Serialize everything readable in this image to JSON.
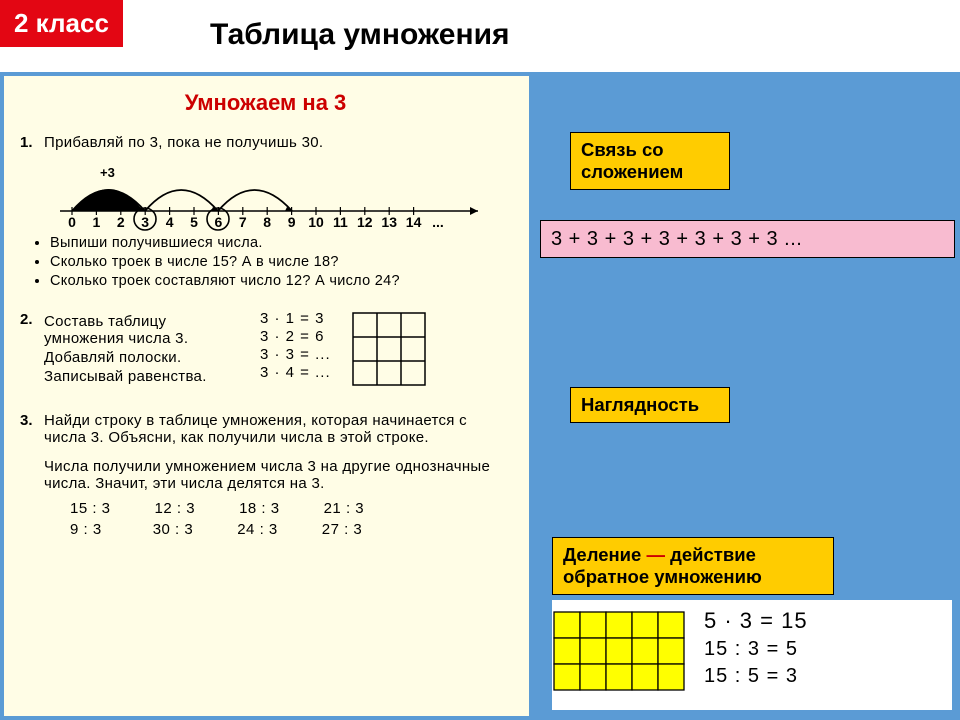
{
  "header": {
    "grade_badge": "2 класс",
    "title": "Таблица умножения"
  },
  "colors": {
    "badge_bg": "#e30613",
    "blue_bg": "#5b9bd5",
    "worksheet_bg": "#fffde6",
    "ws_title_color": "#c00",
    "callout_bg": "#ffcc00",
    "pink_bg": "#f8bbd0",
    "yellow_fill": "#ffff00"
  },
  "worksheet": {
    "title": "Умножаем на 3",
    "task1": {
      "num": "1.",
      "text": "Прибавляй по 3, пока не получишь 30.",
      "plus3_label": "+3",
      "numberline": {
        "numbers": [
          "0",
          "1",
          "2",
          "3",
          "4",
          "5",
          "6",
          "7",
          "8",
          "9",
          "10",
          "11",
          "12",
          "13",
          "14",
          "..."
        ],
        "circled_positions": [
          3,
          6
        ],
        "arc_from_to": [
          [
            0,
            3
          ],
          [
            3,
            6
          ],
          [
            6,
            9
          ]
        ]
      },
      "bullets": [
        "Выпиши получившиеся числа.",
        "Сколько троек в числе 15?  А в числе 18?",
        "Сколько троек составляют число 12?  А число 24?"
      ]
    },
    "task2": {
      "num": "2.",
      "lines": [
        "Составь таблицу умножения числа 3.",
        "Добавляй полоски.",
        "Записывай равенства."
      ],
      "table": [
        "3 · 1 = 3",
        "3 · 2 = 6",
        "3 · 3 = ...",
        "3 · 4 = ..."
      ],
      "grid": {
        "rows": 3,
        "cols": 3
      }
    },
    "task3": {
      "num": "3.",
      "para": "Найди строку в таблице умножения, которая начинается с числа 3. Объясни, как получили числа в этой строке.",
      "para2": "Числа получили умножением числа 3 на другие однозначные числа. Значит, эти числа делятся на 3.",
      "div_rows": [
        [
          "15 : 3",
          "12 : 3",
          "18 : 3",
          "21 : 3"
        ],
        [
          "9 : 3",
          "30 : 3",
          "24 : 3",
          "27 : 3"
        ]
      ]
    }
  },
  "right": {
    "callout1_line1": "Связь со",
    "callout1_line2": "сложением",
    "pink_text": "3 + 3 + 3 + 3 + 3 + 3 + 3 ...",
    "callout2": "Наглядность",
    "callout3_line1_a": "Деление",
    "callout3_dash": "—",
    "callout3_line1_b": "действие",
    "callout3_line2": "обратное умножению",
    "div_panel": {
      "grid": {
        "rows": 3,
        "cols": 5,
        "cell": 26
      },
      "eq1": "5  ·  3  =  15",
      "eq2": "15  :  3  =  5",
      "eq3": "15  :  5  =  3"
    }
  }
}
